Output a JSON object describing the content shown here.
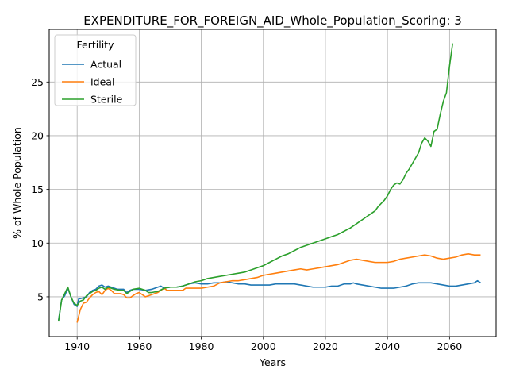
{
  "chart_data": {
    "type": "line",
    "title": "EXPENDITURE_FOR_FOREIGN_AID_Whole_Population_Scoring: 3",
    "xlabel": "Years",
    "ylabel": "% of Whole Population",
    "xlim": [
      1931,
      2075
    ],
    "ylim": [
      1.3,
      29.9
    ],
    "xticks": [
      1940,
      1960,
      1980,
      2000,
      2020,
      2040,
      2060
    ],
    "yticks": [
      5,
      10,
      15,
      20,
      25
    ],
    "grid": true,
    "legend": {
      "title": "Fertility",
      "placement": "top-left"
    },
    "series": [
      {
        "name": "Actual",
        "color": "#1f77b4",
        "points": [
          [
            1934,
            2.8
          ],
          [
            1935,
            4.7
          ],
          [
            1936,
            5.1
          ],
          [
            1937,
            5.8
          ],
          [
            1938,
            5.0
          ],
          [
            1939,
            4.3
          ],
          [
            1940,
            4.1
          ],
          [
            1940.5,
            4.8
          ],
          [
            1942,
            4.9
          ],
          [
            1943,
            5.0
          ],
          [
            1944,
            5.4
          ],
          [
            1945,
            5.6
          ],
          [
            1946,
            5.7
          ],
          [
            1947,
            6.0
          ],
          [
            1948,
            6.1
          ],
          [
            1949,
            5.9
          ],
          [
            1950,
            6.0
          ],
          [
            1951,
            5.9
          ],
          [
            1952,
            5.8
          ],
          [
            1953,
            5.7
          ],
          [
            1955,
            5.7
          ],
          [
            1956,
            5.4
          ],
          [
            1957,
            5.6
          ],
          [
            1958,
            5.7
          ],
          [
            1960,
            5.7
          ],
          [
            1962,
            5.6
          ],
          [
            1964,
            5.7
          ],
          [
            1966,
            5.9
          ],
          [
            1967,
            6.0
          ],
          [
            1968,
            5.8
          ],
          [
            1970,
            5.9
          ],
          [
            1972,
            5.9
          ],
          [
            1974,
            6.0
          ],
          [
            1976,
            6.2
          ],
          [
            1978,
            6.3
          ],
          [
            1980,
            6.2
          ],
          [
            1982,
            6.2
          ],
          [
            1984,
            6.3
          ],
          [
            1986,
            6.3
          ],
          [
            1988,
            6.4
          ],
          [
            1990,
            6.3
          ],
          [
            1992,
            6.2
          ],
          [
            1994,
            6.2
          ],
          [
            1996,
            6.1
          ],
          [
            1998,
            6.1
          ],
          [
            2000,
            6.1
          ],
          [
            2002,
            6.1
          ],
          [
            2004,
            6.2
          ],
          [
            2006,
            6.2
          ],
          [
            2008,
            6.2
          ],
          [
            2010,
            6.2
          ],
          [
            2012,
            6.1
          ],
          [
            2014,
            6.0
          ],
          [
            2016,
            5.9
          ],
          [
            2018,
            5.9
          ],
          [
            2020,
            5.9
          ],
          [
            2022,
            6.0
          ],
          [
            2024,
            6.0
          ],
          [
            2026,
            6.2
          ],
          [
            2028,
            6.2
          ],
          [
            2029,
            6.3
          ],
          [
            2030,
            6.2
          ],
          [
            2032,
            6.1
          ],
          [
            2034,
            6.0
          ],
          [
            2036,
            5.9
          ],
          [
            2038,
            5.8
          ],
          [
            2040,
            5.8
          ],
          [
            2042,
            5.8
          ],
          [
            2044,
            5.9
          ],
          [
            2046,
            6.0
          ],
          [
            2048,
            6.2
          ],
          [
            2050,
            6.3
          ],
          [
            2052,
            6.3
          ],
          [
            2054,
            6.3
          ],
          [
            2056,
            6.2
          ],
          [
            2058,
            6.1
          ],
          [
            2060,
            6.0
          ],
          [
            2062,
            6.0
          ],
          [
            2064,
            6.1
          ],
          [
            2066,
            6.2
          ],
          [
            2068,
            6.3
          ],
          [
            2069,
            6.5
          ],
          [
            2070,
            6.3
          ]
        ]
      },
      {
        "name": "Ideal",
        "color": "#ff7f0e",
        "points": [
          [
            1940,
            2.6
          ],
          [
            1941,
            3.8
          ],
          [
            1942,
            4.4
          ],
          [
            1943,
            4.5
          ],
          [
            1944,
            4.9
          ],
          [
            1945,
            5.2
          ],
          [
            1946,
            5.4
          ],
          [
            1947,
            5.5
          ],
          [
            1948,
            5.2
          ],
          [
            1949,
            5.6
          ],
          [
            1950,
            5.8
          ],
          [
            1951,
            5.6
          ],
          [
            1952,
            5.3
          ],
          [
            1954,
            5.3
          ],
          [
            1955,
            5.2
          ],
          [
            1956,
            4.9
          ],
          [
            1957,
            4.9
          ],
          [
            1958,
            5.1
          ],
          [
            1959,
            5.3
          ],
          [
            1960,
            5.4
          ],
          [
            1961,
            5.2
          ],
          [
            1962,
            5.0
          ],
          [
            1963,
            5.1
          ],
          [
            1964,
            5.2
          ],
          [
            1966,
            5.4
          ],
          [
            1968,
            5.8
          ],
          [
            1969,
            5.6
          ],
          [
            1970,
            5.6
          ],
          [
            1972,
            5.6
          ],
          [
            1974,
            5.6
          ],
          [
            1975,
            5.8
          ],
          [
            1978,
            5.8
          ],
          [
            1980,
            5.8
          ],
          [
            1982,
            5.9
          ],
          [
            1984,
            6.0
          ],
          [
            1986,
            6.3
          ],
          [
            1988,
            6.4
          ],
          [
            1990,
            6.5
          ],
          [
            1992,
            6.5
          ],
          [
            1994,
            6.6
          ],
          [
            1996,
            6.7
          ],
          [
            1998,
            6.8
          ],
          [
            2000,
            7.0
          ],
          [
            2002,
            7.1
          ],
          [
            2004,
            7.2
          ],
          [
            2006,
            7.3
          ],
          [
            2008,
            7.4
          ],
          [
            2010,
            7.5
          ],
          [
            2012,
            7.6
          ],
          [
            2014,
            7.5
          ],
          [
            2016,
            7.6
          ],
          [
            2018,
            7.7
          ],
          [
            2020,
            7.8
          ],
          [
            2022,
            7.9
          ],
          [
            2024,
            8.0
          ],
          [
            2026,
            8.2
          ],
          [
            2028,
            8.4
          ],
          [
            2030,
            8.5
          ],
          [
            2032,
            8.4
          ],
          [
            2034,
            8.3
          ],
          [
            2036,
            8.2
          ],
          [
            2038,
            8.2
          ],
          [
            2040,
            8.2
          ],
          [
            2042,
            8.3
          ],
          [
            2044,
            8.5
          ],
          [
            2046,
            8.6
          ],
          [
            2048,
            8.7
          ],
          [
            2050,
            8.8
          ],
          [
            2052,
            8.9
          ],
          [
            2054,
            8.8
          ],
          [
            2056,
            8.6
          ],
          [
            2058,
            8.5
          ],
          [
            2060,
            8.6
          ],
          [
            2062,
            8.7
          ],
          [
            2064,
            8.9
          ],
          [
            2066,
            9.0
          ],
          [
            2068,
            8.9
          ],
          [
            2070,
            8.9
          ]
        ]
      },
      {
        "name": "Sterile",
        "color": "#2ca02c",
        "points": [
          [
            1934,
            2.7
          ],
          [
            1935,
            4.7
          ],
          [
            1936,
            5.3
          ],
          [
            1937,
            5.9
          ],
          [
            1938,
            5.0
          ],
          [
            1939,
            4.4
          ],
          [
            1940,
            4.2
          ],
          [
            1941,
            4.6
          ],
          [
            1942,
            4.7
          ],
          [
            1943,
            5.1
          ],
          [
            1944,
            5.3
          ],
          [
            1945,
            5.5
          ],
          [
            1946,
            5.6
          ],
          [
            1947,
            5.8
          ],
          [
            1948,
            5.9
          ],
          [
            1949,
            5.7
          ],
          [
            1950,
            5.9
          ],
          [
            1951,
            5.8
          ],
          [
            1952,
            5.7
          ],
          [
            1954,
            5.6
          ],
          [
            1955,
            5.6
          ],
          [
            1956,
            5.3
          ],
          [
            1957,
            5.5
          ],
          [
            1958,
            5.7
          ],
          [
            1960,
            5.8
          ],
          [
            1962,
            5.6
          ],
          [
            1963,
            5.4
          ],
          [
            1964,
            5.4
          ],
          [
            1966,
            5.5
          ],
          [
            1968,
            5.8
          ],
          [
            1970,
            5.9
          ],
          [
            1972,
            5.9
          ],
          [
            1974,
            6.0
          ],
          [
            1976,
            6.2
          ],
          [
            1978,
            6.4
          ],
          [
            1980,
            6.5
          ],
          [
            1982,
            6.7
          ],
          [
            1984,
            6.8
          ],
          [
            1986,
            6.9
          ],
          [
            1988,
            7.0
          ],
          [
            1990,
            7.1
          ],
          [
            1992,
            7.2
          ],
          [
            1994,
            7.3
          ],
          [
            1996,
            7.5
          ],
          [
            1998,
            7.7
          ],
          [
            2000,
            7.9
          ],
          [
            2002,
            8.2
          ],
          [
            2004,
            8.5
          ],
          [
            2006,
            8.8
          ],
          [
            2008,
            9.0
          ],
          [
            2010,
            9.3
          ],
          [
            2012,
            9.6
          ],
          [
            2014,
            9.8
          ],
          [
            2016,
            10.0
          ],
          [
            2018,
            10.2
          ],
          [
            2020,
            10.4
          ],
          [
            2022,
            10.6
          ],
          [
            2024,
            10.8
          ],
          [
            2026,
            11.1
          ],
          [
            2028,
            11.4
          ],
          [
            2030,
            11.8
          ],
          [
            2032,
            12.2
          ],
          [
            2034,
            12.6
          ],
          [
            2036,
            13.0
          ],
          [
            2037,
            13.4
          ],
          [
            2038,
            13.7
          ],
          [
            2039,
            14.0
          ],
          [
            2040,
            14.4
          ],
          [
            2041,
            15.0
          ],
          [
            2042,
            15.4
          ],
          [
            2043,
            15.6
          ],
          [
            2044,
            15.5
          ],
          [
            2045,
            15.9
          ],
          [
            2046,
            16.5
          ],
          [
            2047,
            16.9
          ],
          [
            2048,
            17.4
          ],
          [
            2049,
            17.9
          ],
          [
            2050,
            18.4
          ],
          [
            2051,
            19.3
          ],
          [
            2052,
            19.8
          ],
          [
            2053,
            19.5
          ],
          [
            2054,
            19.0
          ],
          [
            2055,
            20.4
          ],
          [
            2056,
            20.6
          ],
          [
            2057,
            22.0
          ],
          [
            2058,
            23.2
          ],
          [
            2059,
            24.0
          ],
          [
            2060,
            26.5
          ],
          [
            2061,
            28.6
          ]
        ]
      }
    ]
  }
}
